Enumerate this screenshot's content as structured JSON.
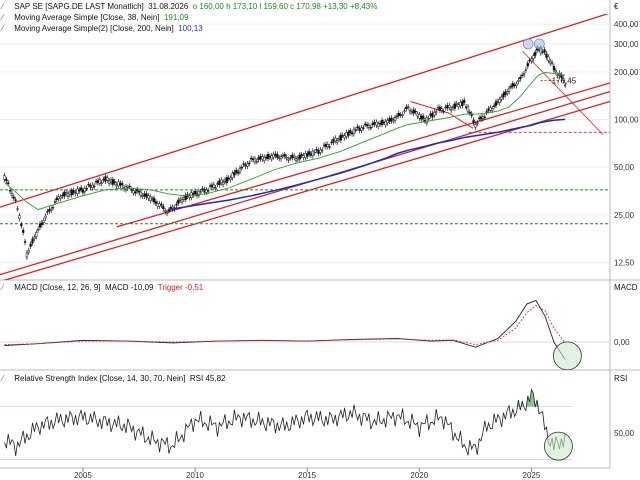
{
  "header": {
    "title": "SAP SE [SAPG.DE LAST Monatlich]",
    "date": "31.08.2026",
    "ohlc": "o 160,00  h 173,10  l 159,60  c 170,98  +13,30  +8,43%",
    "ma38": {
      "label": "Moving Average Simple [Close, 38, Nein]",
      "value": "191,09"
    },
    "ma200": {
      "label": "Moving Average Simple(2) [Close, 200, Nein]",
      "value": "100,13"
    },
    "currency": "€"
  },
  "macd_header": {
    "label": "MACD [Close, 12, 26, 9]",
    "macd": "MACD -10,09",
    "trigger": "Trigger -0,51",
    "axis_title": "MACD"
  },
  "rsi_header": {
    "label": "Relative Strength Index [Close, 14, 30, 70, Nein]",
    "value": "RSI 45,82",
    "axis_title": "RSI"
  },
  "price_annotation": "176,45",
  "y_ticks_price": [
    "400,00",
    "300,00",
    "200,00",
    "100,00",
    "50,00",
    "25,00",
    "12,50"
  ],
  "y_ticks_macd": [
    "0,00"
  ],
  "y_ticks_rsi": [
    "50,00"
  ],
  "x_ticks": [
    "2005",
    "2010",
    "2015",
    "2020",
    "2025"
  ],
  "colors": {
    "candle": "#111111",
    "ma38": "#2e9e2e",
    "ma200": "#1a2ad0",
    "channel": "#e02020",
    "support": "#1a8a1a",
    "circle": "#cfe8cf"
  },
  "chart_data": [
    {
      "type": "line",
      "title": "SAP SE [SAPG.DE LAST Monatlich]",
      "scale": "log",
      "x": [
        2001.5,
        2002.0,
        2002.5,
        2003.0,
        2004.0,
        2005.0,
        2006.0,
        2007.0,
        2008.0,
        2008.8,
        2009.5,
        2010.5,
        2011.5,
        2012.5,
        2013.5,
        2014.5,
        2015.5,
        2016.5,
        2017.5,
        2018.5,
        2019.0,
        2019.5,
        2020.3,
        2020.8,
        2021.5,
        2022.0,
        2022.5,
        2023.0,
        2023.5,
        2024.0,
        2024.5,
        2025.0,
        2025.3,
        2025.6,
        2026.0,
        2026.5
      ],
      "series": [
        {
          "name": "SAP SE",
          "values": [
            43,
            30,
            14,
            20,
            33,
            36,
            42,
            37,
            32,
            26,
            32,
            36,
            42,
            55,
            59,
            57,
            63,
            77,
            90,
            96,
            103,
            118,
            98,
            115,
            120,
            128,
            93,
            110,
            128,
            155,
            178,
            240,
            280,
            265,
            210,
            171
          ]
        },
        {
          "name": "Moving Average Simple [Close, 38, Nein]",
          "values": [
            40,
            35,
            30,
            27,
            30,
            33,
            36,
            37,
            36,
            34,
            33,
            34,
            37,
            42,
            48,
            53,
            57,
            63,
            72,
            82,
            88,
            93,
            97,
            100,
            104,
            108,
            108,
            110,
            113,
            120,
            140,
            170,
            190,
            198,
            195,
            191
          ]
        },
        {
          "name": "Moving Average Simple(2) [Close, 200, Nein]",
          "values": [
            null,
            null,
            null,
            null,
            null,
            null,
            null,
            null,
            null,
            27,
            28,
            29.5,
            31,
            33,
            35.5,
            38.5,
            42,
            46,
            51,
            57,
            61,
            64,
            68,
            71,
            74,
            77,
            79,
            81,
            83,
            86,
            89,
            92,
            95,
            97,
            99,
            100.13
          ]
        }
      ],
      "ylim": [
        10,
        450
      ],
      "xlim": [
        2001.3,
        2028.5
      ],
      "annotations": [
        "176,45"
      ]
    },
    {
      "type": "line",
      "title": "MACD [Close, 12, 26, 9]",
      "x": [
        2001.5,
        2003.0,
        2005.0,
        2007.0,
        2009.0,
        2011.0,
        2013.0,
        2015.0,
        2017.0,
        2019.0,
        2020.5,
        2021.5,
        2022.5,
        2023.5,
        2024.3,
        2024.8,
        2025.2,
        2025.6,
        2026.0,
        2026.5
      ],
      "series": [
        {
          "name": "MACD",
          "values": [
            -2,
            -1,
            1,
            0.5,
            -0.5,
            0.5,
            1,
            0.5,
            1.5,
            2,
            0.5,
            1,
            -3,
            2,
            12,
            22,
            24,
            15,
            0,
            -10.09
          ]
        },
        {
          "name": "Trigger",
          "values": [
            -1.5,
            -1,
            0.5,
            0.5,
            0,
            0.5,
            0.8,
            0.5,
            1.2,
            1.8,
            1,
            1.2,
            -1.5,
            1,
            8,
            17,
            21,
            18,
            8,
            -0.51
          ]
        }
      ],
      "ylim": [
        -15,
        30
      ]
    },
    {
      "type": "line",
      "title": "Relative Strength Index [Close, 14, 30, 70, Nein]",
      "x": [
        2001.5,
        2002.0,
        2003.0,
        2004.0,
        2005.0,
        2006.0,
        2007.0,
        2008.0,
        2009.0,
        2010.0,
        2011.0,
        2012.0,
        2013.0,
        2014.0,
        2015.0,
        2016.0,
        2017.0,
        2018.0,
        2019.0,
        2020.0,
        2021.0,
        2022.0,
        2022.5,
        2023.0,
        2024.0,
        2024.6,
        2025.0,
        2025.3,
        2025.7,
        2026.0,
        2026.5
      ],
      "series": [
        {
          "name": "RSI",
          "values": [
            45,
            40,
            55,
            60,
            62,
            58,
            55,
            45,
            40,
            60,
            55,
            62,
            58,
            55,
            62,
            60,
            65,
            58,
            63,
            55,
            62,
            40,
            38,
            55,
            65,
            70,
            78,
            72,
            48,
            40,
            45.82
          ]
        }
      ],
      "ylim": [
        25,
        90
      ],
      "thresholds": [
        30,
        70
      ]
    }
  ]
}
